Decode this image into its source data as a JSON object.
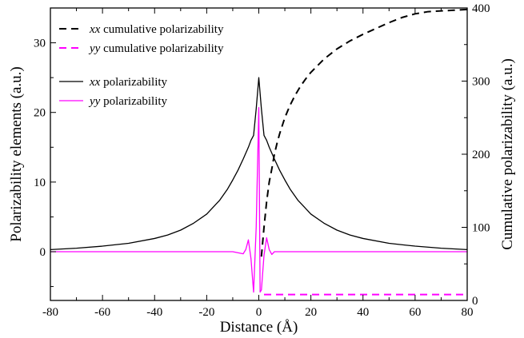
{
  "chart_data": {
    "type": "line",
    "xlabel": "Distance (Å)",
    "ylabel_left": "Polarizability elements (a.u.)",
    "ylabel_right": "Cumulative polarizability (a.u.)",
    "xlim": [
      -80,
      80
    ],
    "ylim_left": [
      -7,
      35
    ],
    "ylim_right": [
      0,
      400
    ],
    "x_ticks": [
      -80,
      -60,
      -40,
      -20,
      0,
      20,
      40,
      60,
      80
    ],
    "x_tick_labels": [
      "-80",
      "-60",
      "-40",
      "-20",
      "0",
      "20",
      "40",
      "60",
      "80"
    ],
    "y_left_ticks": [
      0,
      10,
      20,
      30
    ],
    "y_left_tick_labels": [
      "0",
      "10",
      "20",
      "30"
    ],
    "y_right_ticks": [
      0,
      100,
      200,
      300,
      400
    ],
    "y_right_tick_labels": [
      "0",
      "100",
      "200",
      "300",
      "400"
    ],
    "grid": false,
    "legend_position": "top-left",
    "legend": [
      {
        "italic": "xx",
        "label": " cumulative polarizability",
        "color": "#000000",
        "dash": true
      },
      {
        "italic": "yy",
        "label": " cumulative polarizability",
        "color": "#ff00ff",
        "dash": true
      },
      {
        "italic": "xx",
        "label": " polarizability",
        "color": "#000000",
        "dash": false
      },
      {
        "italic": "yy",
        "label": " polarizability",
        "color": "#ff00ff",
        "dash": false
      }
    ],
    "series": [
      {
        "name": "xx polarizability",
        "axis": "left",
        "color": "#000000",
        "dash": false,
        "x": [
          -80,
          -70,
          -60,
          -50,
          -40,
          -35,
          -30,
          -25,
          -20,
          -15,
          -12,
          -10,
          -8,
          -6,
          -4,
          -3,
          -2,
          -1,
          0,
          1,
          2,
          3,
          4,
          6,
          8,
          10,
          12,
          15,
          20,
          25,
          30,
          35,
          40,
          50,
          60,
          70,
          80
        ],
        "y": [
          0.3,
          0.5,
          0.8,
          1.2,
          1.9,
          2.4,
          3.1,
          4.1,
          5.4,
          7.4,
          9.0,
          10.3,
          11.7,
          13.3,
          15.0,
          16.0,
          16.7,
          20.5,
          25.0,
          20.5,
          16.7,
          16.0,
          15.0,
          13.3,
          11.7,
          10.3,
          9.0,
          7.4,
          5.4,
          4.1,
          3.1,
          2.4,
          1.9,
          1.2,
          0.8,
          0.5,
          0.3
        ]
      },
      {
        "name": "yy polarizability",
        "axis": "left",
        "color": "#ff00ff",
        "dash": false,
        "x": [
          -80,
          -10,
          -6,
          -5,
          -4,
          -3,
          -2,
          -1,
          0,
          0.5,
          1,
          2,
          3,
          4,
          5,
          6,
          10,
          80
        ],
        "y": [
          0,
          0,
          -0.3,
          0.3,
          1.7,
          -1.0,
          -5.8,
          3.5,
          20.7,
          -5.8,
          -5.5,
          -0.5,
          2.0,
          0.3,
          -0.4,
          0,
          0,
          0
        ]
      },
      {
        "name": "xx cumulative polarizability",
        "axis": "right",
        "color": "#000000",
        "dash": true,
        "x": [
          1,
          2,
          3,
          4,
          5,
          6,
          7,
          8,
          10,
          12,
          14,
          16,
          18,
          20,
          25,
          30,
          35,
          40,
          45,
          50,
          55,
          60,
          65,
          70,
          75,
          80
        ],
        "y": [
          60,
          100,
          135,
          162,
          180,
          200,
          215,
          228,
          250,
          267,
          281,
          293,
          303,
          312,
          330,
          344,
          355,
          364,
          372,
          380,
          387,
          392,
          395,
          396,
          397,
          398
        ]
      },
      {
        "name": "yy cumulative polarizability",
        "axis": "right",
        "color": "#ff00ff",
        "dash": true,
        "x": [
          2,
          80
        ],
        "y": [
          8,
          8
        ]
      }
    ]
  }
}
